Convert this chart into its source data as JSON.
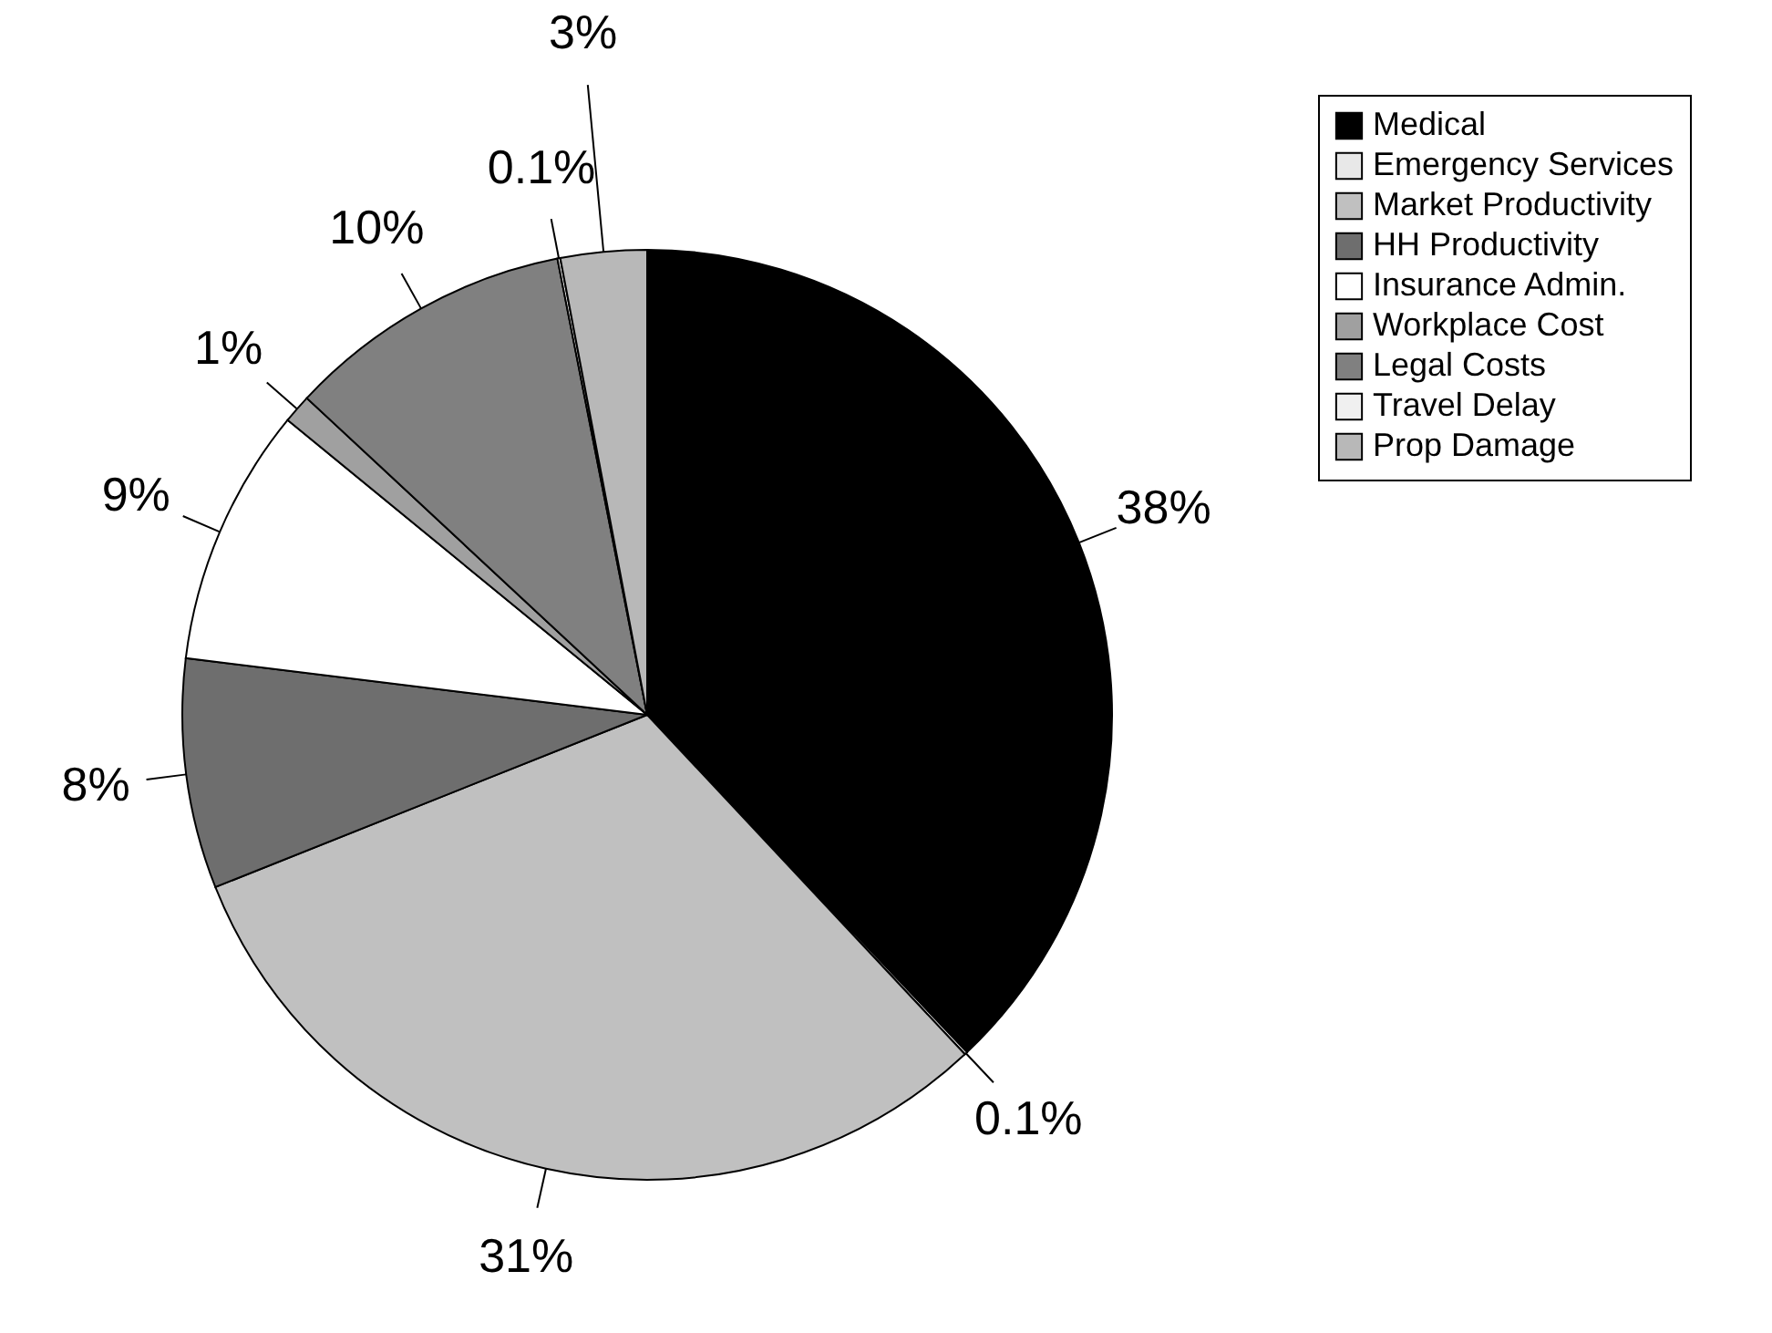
{
  "chart_data": {
    "type": "pie",
    "categories": [
      "Medical",
      "Emergency Services",
      "Market Productivity",
      "HH Productivity",
      "Insurance Admin.",
      "Workplace Cost",
      "Legal Costs",
      "Travel Delay",
      "Prop Damage"
    ],
    "values": [
      38,
      0.1,
      31,
      8,
      9,
      1,
      10,
      0.1,
      3
    ],
    "colors": [
      "#000000",
      "#e8e8e8",
      "#c0c0c0",
      "#6e6e6e",
      "#ffffff",
      "#a0a0a0",
      "#808080",
      "#f0f0f0",
      "#b8b8b8"
    ],
    "value_labels": [
      "38%",
      "0.1%",
      "31%",
      "8%",
      "9%",
      "1%",
      "10%",
      "0.1%",
      "3%"
    ],
    "legend": "right"
  }
}
